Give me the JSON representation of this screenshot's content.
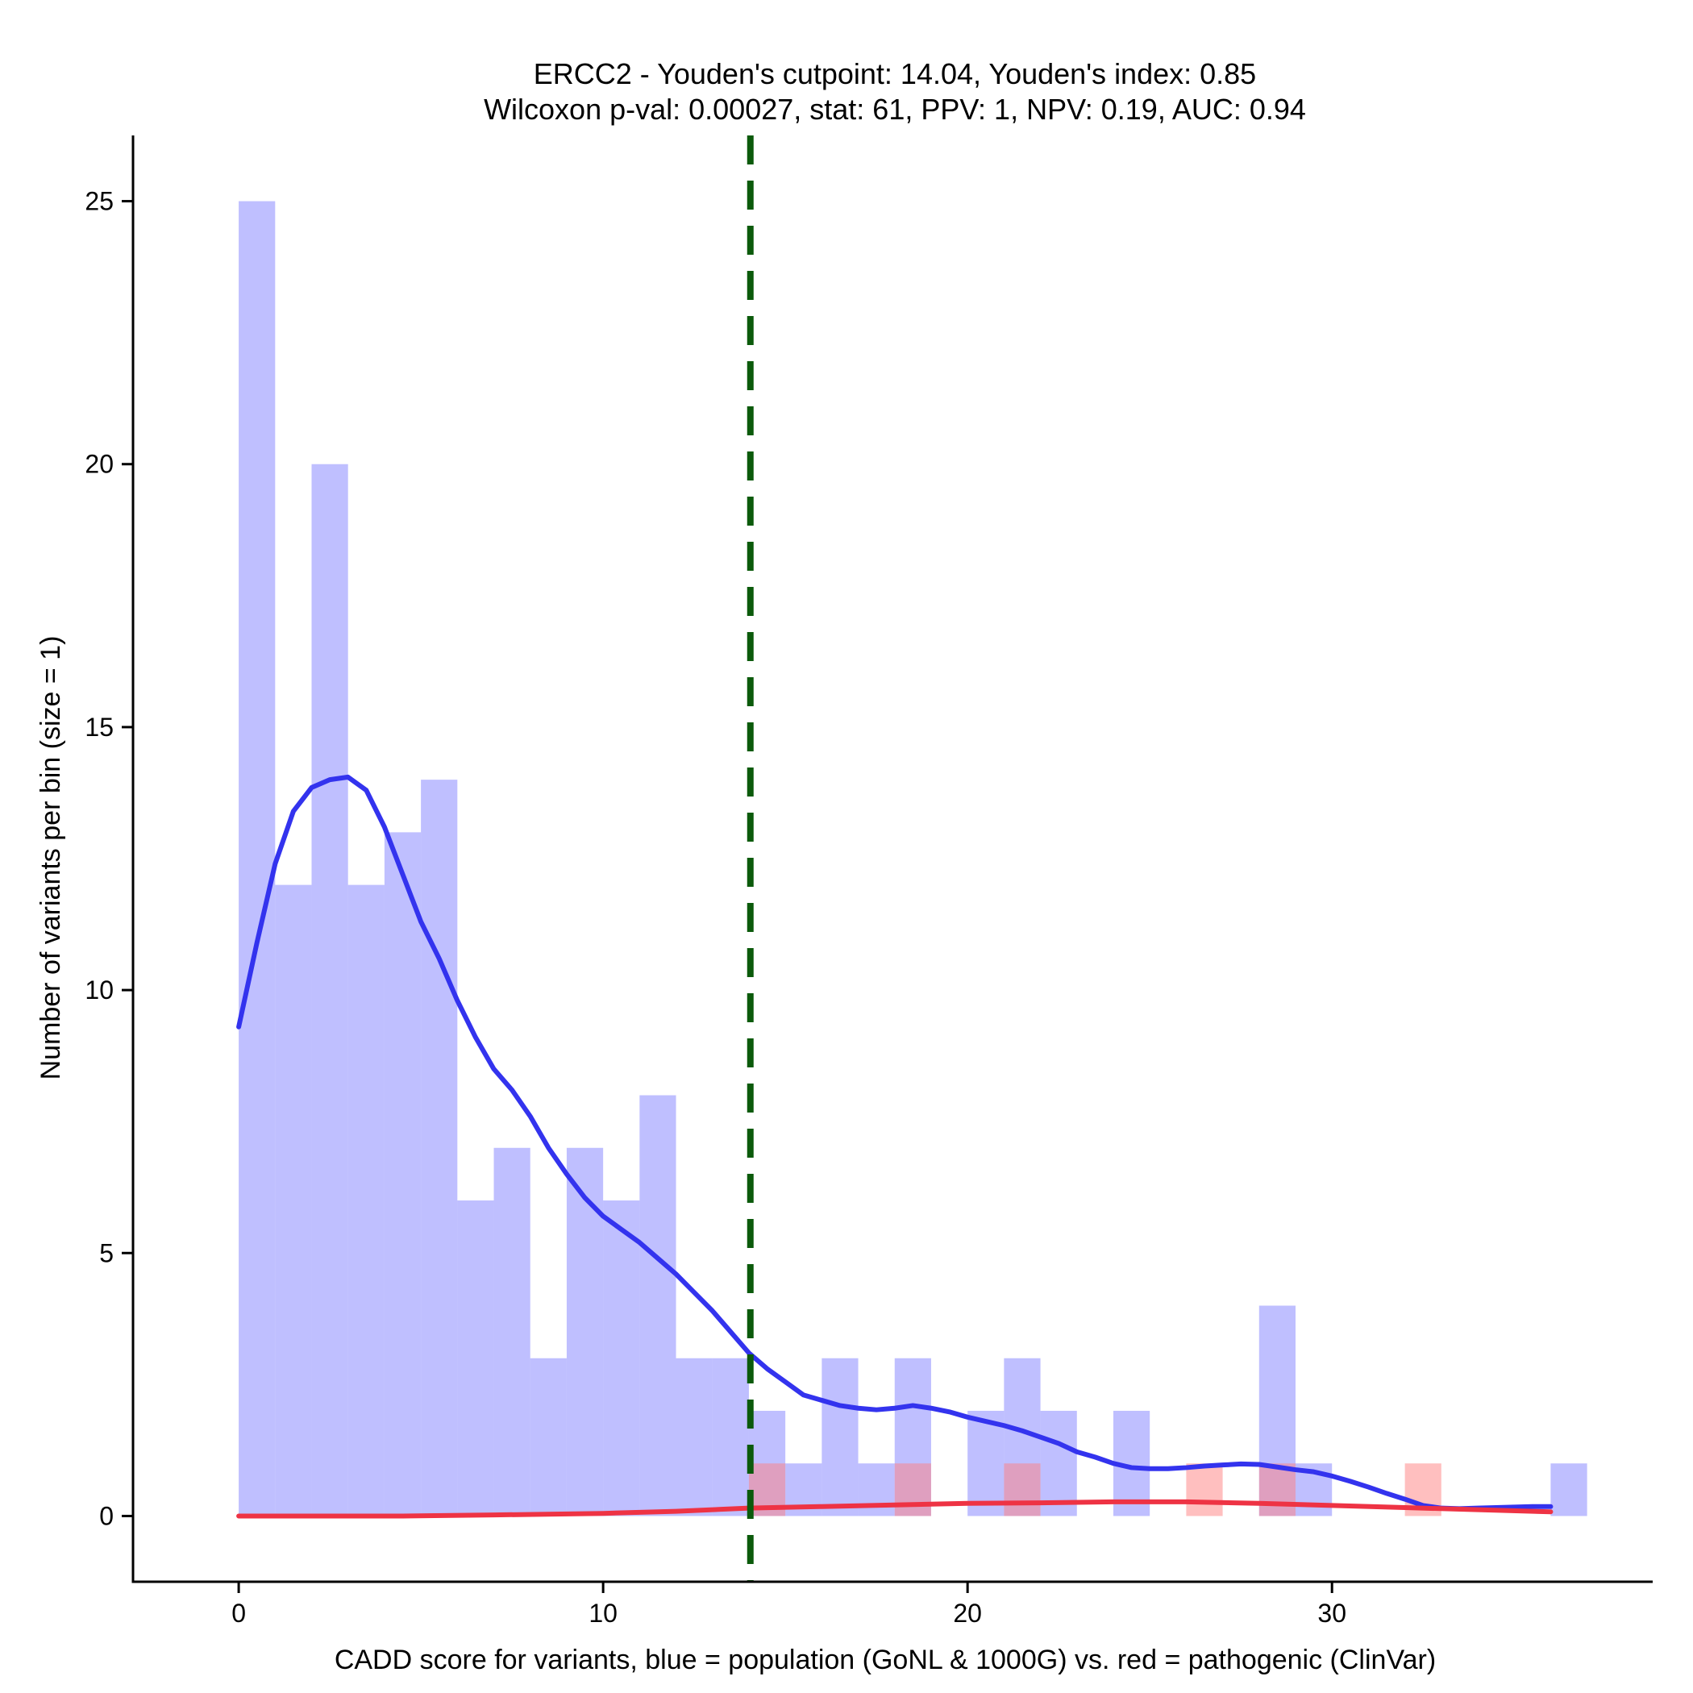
{
  "chart_data": {
    "type": "bar",
    "title_line1": "ERCC2 - Youden's cutpoint: 14.04, Youden's index: 0.85",
    "title_line2": "Wilcoxon p-val: 0.00027, stat: 61, PPV: 1, NPV: 0.19, AUC: 0.94",
    "xlabel": "CADD score for variants, blue = population (GoNL & 1000G) vs. red = pathogenic (ClinVar)",
    "ylabel": "Number of variants per bin (size = 1)",
    "xlim": [
      -2.9,
      38.8
    ],
    "ylim": [
      -1.25,
      26.25
    ],
    "x_ticks": [
      0,
      10,
      20,
      30
    ],
    "x_tick_labels": [
      "0",
      "10",
      "20",
      "30"
    ],
    "y_ticks": [
      0,
      5,
      10,
      15,
      20,
      25
    ],
    "y_tick_labels": [
      "0",
      "5",
      "10",
      "15",
      "20",
      "25"
    ],
    "bin_width": 1,
    "cutpoint": 14.04,
    "series": [
      {
        "name": "population (GoNL & 1000G)",
        "color": "#8080ff",
        "bins": [
          {
            "x0": 0,
            "count": 25
          },
          {
            "x0": 1,
            "count": 12
          },
          {
            "x0": 2,
            "count": 20
          },
          {
            "x0": 3,
            "count": 12
          },
          {
            "x0": 4,
            "count": 13
          },
          {
            "x0": 5,
            "count": 14
          },
          {
            "x0": 6,
            "count": 6
          },
          {
            "x0": 7,
            "count": 7
          },
          {
            "x0": 8,
            "count": 3
          },
          {
            "x0": 9,
            "count": 7
          },
          {
            "x0": 10,
            "count": 6
          },
          {
            "x0": 11,
            "count": 8
          },
          {
            "x0": 12,
            "count": 3
          },
          {
            "x0": 13,
            "count": 3
          },
          {
            "x0": 14,
            "count": 2
          },
          {
            "x0": 15,
            "count": 1
          },
          {
            "x0": 16,
            "count": 3
          },
          {
            "x0": 17,
            "count": 1
          },
          {
            "x0": 18,
            "count": 3
          },
          {
            "x0": 20,
            "count": 2
          },
          {
            "x0": 21,
            "count": 3
          },
          {
            "x0": 22,
            "count": 2
          },
          {
            "x0": 24,
            "count": 2
          },
          {
            "x0": 28,
            "count": 4
          },
          {
            "x0": 29,
            "count": 1
          },
          {
            "x0": 36,
            "count": 1
          }
        ]
      },
      {
        "name": "pathogenic (ClinVar)",
        "color": "#ff8080",
        "bins": [
          {
            "x0": 14,
            "count": 1
          },
          {
            "x0": 18,
            "count": 1
          },
          {
            "x0": 21,
            "count": 1
          },
          {
            "x0": 26,
            "count": 1
          },
          {
            "x0": 28,
            "count": 1
          },
          {
            "x0": 32,
            "count": 1
          }
        ]
      }
    ],
    "density_curves": [
      {
        "name": "population density",
        "color": "#3333ee",
        "points": [
          [
            0,
            9.3
          ],
          [
            0.5,
            10.9
          ],
          [
            1,
            12.4
          ],
          [
            1.5,
            13.4
          ],
          [
            2,
            13.85
          ],
          [
            2.5,
            14.0
          ],
          [
            3,
            14.05
          ],
          [
            3.5,
            13.8
          ],
          [
            4,
            13.1
          ],
          [
            4.5,
            12.2
          ],
          [
            5,
            11.3
          ],
          [
            5.5,
            10.6
          ],
          [
            6,
            9.8
          ],
          [
            6.5,
            9.1
          ],
          [
            7,
            8.5
          ],
          [
            7.5,
            8.1
          ],
          [
            8,
            7.6
          ],
          [
            8.5,
            7.0
          ],
          [
            9,
            6.5
          ],
          [
            9.5,
            6.05
          ],
          [
            10,
            5.7
          ],
          [
            10.5,
            5.45
          ],
          [
            11,
            5.2
          ],
          [
            11.5,
            4.9
          ],
          [
            12,
            4.6
          ],
          [
            12.5,
            4.25
          ],
          [
            13,
            3.9
          ],
          [
            13.5,
            3.5
          ],
          [
            14,
            3.1
          ],
          [
            14.5,
            2.8
          ],
          [
            15,
            2.55
          ],
          [
            15.5,
            2.3
          ],
          [
            16,
            2.2
          ],
          [
            16.5,
            2.1
          ],
          [
            17,
            2.05
          ],
          [
            17.5,
            2.02
          ],
          [
            18,
            2.05
          ],
          [
            18.5,
            2.1
          ],
          [
            19,
            2.05
          ],
          [
            19.5,
            1.98
          ],
          [
            20,
            1.88
          ],
          [
            20.5,
            1.8
          ],
          [
            21,
            1.72
          ],
          [
            21.5,
            1.62
          ],
          [
            22,
            1.5
          ],
          [
            22.5,
            1.38
          ],
          [
            23,
            1.22
          ],
          [
            23.5,
            1.12
          ],
          [
            24,
            1.0
          ],
          [
            24.5,
            0.92
          ],
          [
            25,
            0.9
          ],
          [
            25.5,
            0.9
          ],
          [
            26,
            0.92
          ],
          [
            26.5,
            0.95
          ],
          [
            27,
            0.97
          ],
          [
            27.5,
            0.99
          ],
          [
            28,
            0.98
          ],
          [
            28.5,
            0.93
          ],
          [
            29,
            0.88
          ],
          [
            29.5,
            0.84
          ],
          [
            30,
            0.76
          ],
          [
            30.5,
            0.66
          ],
          [
            31,
            0.55
          ],
          [
            31.5,
            0.43
          ],
          [
            32,
            0.32
          ],
          [
            32.5,
            0.2
          ],
          [
            33,
            0.15
          ],
          [
            33.5,
            0.14
          ],
          [
            34,
            0.15
          ],
          [
            34.5,
            0.16
          ],
          [
            35,
            0.17
          ],
          [
            35.5,
            0.18
          ],
          [
            36,
            0.18
          ]
        ]
      },
      {
        "name": "pathogenic density",
        "color": "#ee3344",
        "points": [
          [
            0,
            0.0
          ],
          [
            2,
            0.0
          ],
          [
            4.5,
            0.0
          ],
          [
            7,
            0.02
          ],
          [
            10,
            0.05
          ],
          [
            12,
            0.09
          ],
          [
            14,
            0.15
          ],
          [
            16,
            0.18
          ],
          [
            18,
            0.21
          ],
          [
            20,
            0.24
          ],
          [
            22,
            0.25
          ],
          [
            24,
            0.27
          ],
          [
            26,
            0.27
          ],
          [
            28,
            0.24
          ],
          [
            30,
            0.2
          ],
          [
            32,
            0.16
          ],
          [
            34,
            0.12
          ],
          [
            36,
            0.08
          ]
        ]
      }
    ]
  }
}
